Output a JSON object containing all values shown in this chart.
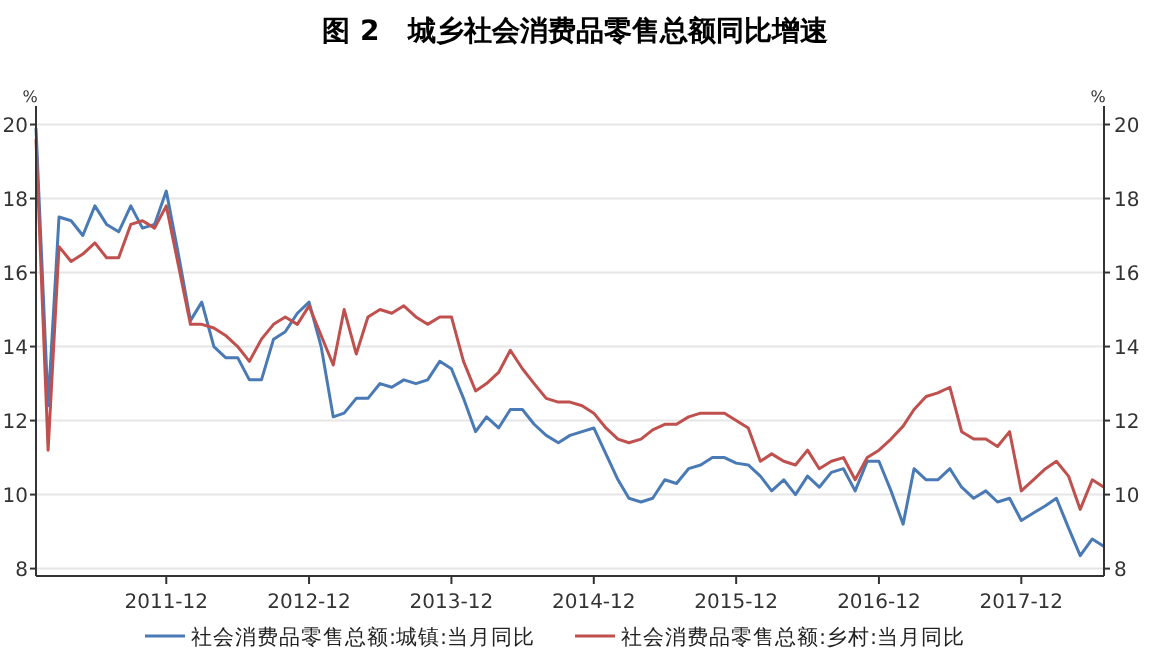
{
  "chart_data": {
    "type": "line",
    "title": "图 2　城乡社会消费品零售总额同比增速",
    "ylabel": "%",
    "y2label": "%",
    "x": [
      "2011-01",
      "2011-02",
      "2011-03",
      "2011-04",
      "2011-05",
      "2011-06",
      "2011-07",
      "2011-08",
      "2011-09",
      "2011-10",
      "2011-11",
      "2011-12",
      "2012-01",
      "2012-02",
      "2012-03",
      "2012-04",
      "2012-05",
      "2012-06",
      "2012-07",
      "2012-08",
      "2012-09",
      "2012-10",
      "2012-11",
      "2012-12",
      "2013-01",
      "2013-02",
      "2013-03",
      "2013-04",
      "2013-05",
      "2013-06",
      "2013-07",
      "2013-08",
      "2013-09",
      "2013-10",
      "2013-11",
      "2013-12",
      "2014-01",
      "2014-02",
      "2014-03",
      "2014-04",
      "2014-05",
      "2014-06",
      "2014-07",
      "2014-08",
      "2014-09",
      "2014-10",
      "2014-11",
      "2014-12",
      "2015-01",
      "2015-02",
      "2015-03",
      "2015-04",
      "2015-05",
      "2015-06",
      "2015-07",
      "2015-08",
      "2015-09",
      "2015-10",
      "2015-11",
      "2015-12",
      "2016-01",
      "2016-02",
      "2016-03",
      "2016-04",
      "2016-05",
      "2016-06",
      "2016-07",
      "2016-08",
      "2016-09",
      "2016-10",
      "2016-11",
      "2016-12",
      "2017-01",
      "2017-02",
      "2017-03",
      "2017-04",
      "2017-05",
      "2017-06",
      "2017-07",
      "2017-08",
      "2017-09",
      "2017-10",
      "2017-11",
      "2017-12",
      "2018-01",
      "2018-02",
      "2018-03",
      "2018-04",
      "2018-05",
      "2018-06",
      "2018-07"
    ],
    "series": [
      {
        "name": "社会消费品零售总额:城镇:当月同比",
        "color": "#4a7ab5",
        "values": [
          19.9,
          12.4,
          17.5,
          17.4,
          17.0,
          17.8,
          17.3,
          17.1,
          17.8,
          17.2,
          17.3,
          18.2,
          16.5,
          14.7,
          15.2,
          14.0,
          13.7,
          13.7,
          13.1,
          13.1,
          14.2,
          14.4,
          14.9,
          15.2,
          14.0,
          12.1,
          12.2,
          12.6,
          12.6,
          13.0,
          12.9,
          13.1,
          13.0,
          13.1,
          13.6,
          13.4,
          12.6,
          11.7,
          12.1,
          11.8,
          12.3,
          12.3,
          11.9,
          11.6,
          11.4,
          11.6,
          11.7,
          11.8,
          11.1,
          10.4,
          9.9,
          9.8,
          9.9,
          10.4,
          10.3,
          10.7,
          10.8,
          11.0,
          11.0,
          10.85,
          10.8,
          10.5,
          10.1,
          10.4,
          10.0,
          10.5,
          10.2,
          10.6,
          10.7,
          10.1,
          10.9,
          10.9,
          10.1,
          9.2,
          10.7,
          10.4,
          10.4,
          10.7,
          10.2,
          9.9,
          10.1,
          9.8,
          9.9,
          9.3,
          9.5,
          9.7,
          9.9,
          9.1,
          8.35,
          8.8,
          8.6
        ]
      },
      {
        "name": "社会消费品零售总额:乡村:当月同比",
        "color": "#c0504d",
        "values": [
          19.6,
          11.2,
          16.7,
          16.3,
          16.5,
          16.8,
          16.4,
          16.4,
          17.3,
          17.4,
          17.2,
          17.8,
          16.2,
          14.6,
          14.6,
          14.5,
          14.3,
          14.0,
          13.6,
          14.2,
          14.6,
          14.8,
          14.6,
          15.1,
          14.3,
          13.5,
          15.0,
          13.8,
          14.8,
          15.0,
          14.9,
          15.1,
          14.8,
          14.6,
          14.8,
          14.8,
          13.6,
          12.8,
          13.0,
          13.3,
          13.9,
          13.4,
          13.0,
          12.6,
          12.5,
          12.5,
          12.4,
          12.2,
          11.8,
          11.5,
          11.4,
          11.5,
          11.75,
          11.9,
          11.9,
          12.1,
          12.2,
          12.2,
          12.2,
          12.0,
          11.8,
          10.9,
          11.1,
          10.9,
          10.8,
          11.2,
          10.7,
          10.9,
          11.0,
          10.4,
          11.0,
          11.2,
          11.5,
          11.85,
          12.3,
          12.65,
          12.75,
          12.9,
          11.7,
          11.5,
          11.5,
          11.3,
          11.7,
          10.1,
          10.4,
          10.7,
          10.9,
          10.5,
          9.6,
          10.4,
          10.2
        ]
      }
    ],
    "xlim": [
      "2011-01",
      "2018-07"
    ],
    "xticks": [
      "2011-12",
      "2012-12",
      "2013-12",
      "2014-12",
      "2015-12",
      "2016-12",
      "2017-12"
    ],
    "ylim": [
      7.8,
      20.5
    ],
    "yticks": [
      8,
      10,
      12,
      14,
      16,
      18,
      20
    ],
    "y2lim": [
      7.8,
      20.5
    ],
    "y2ticks": [
      8,
      10,
      12,
      14,
      16,
      18,
      20
    ],
    "grid": "y",
    "legend": "bottom",
    "line_style": "solid",
    "marker": "none"
  }
}
